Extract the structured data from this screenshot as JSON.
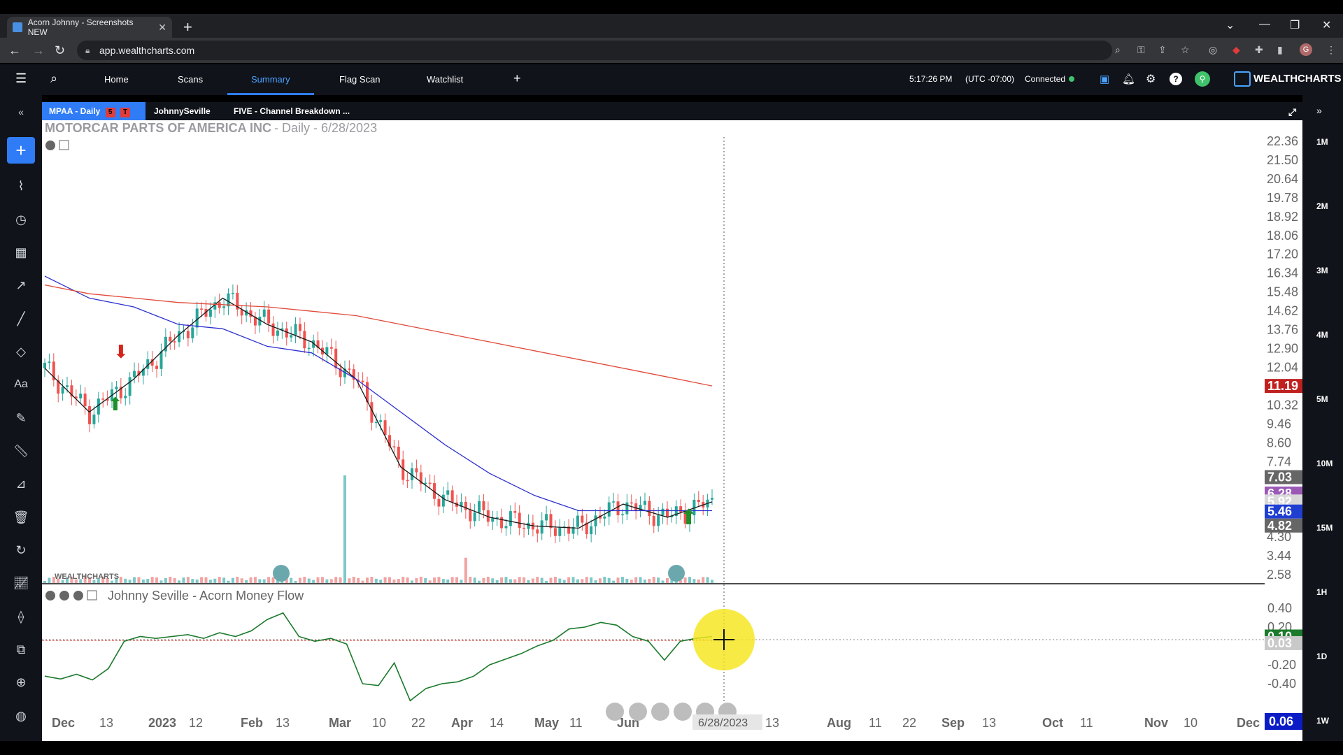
{
  "browser": {
    "tab_title": "Acorn Johnny - Screenshots NEW",
    "url": "app.wealthcharts.com"
  },
  "nav": {
    "home": "Home",
    "scans": "Scans",
    "summary": "Summary",
    "flag_scan": "Flag Scan",
    "watchlist": "Watchlist",
    "time": "5:17:26 PM",
    "timezone": "(UTC -07:00)",
    "status": "Connected",
    "brand": "WEALTHCHARTS"
  },
  "chart_tabs": {
    "tab1": "MPAA - Daily",
    "tab1_badge1": "5",
    "tab1_badge2": "T",
    "tab2": "JohnnySeville",
    "tab3": "FIVE - Channel Breakdown ..."
  },
  "chart": {
    "symbol_name": "MOTORCAR PARTS OF AMERICA INC",
    "subtitle": "- Daily - 6/28/2023",
    "indicator_name": "Johnny Seville - Acorn Money Flow",
    "watermark": "WEALTHCHARTS",
    "crosshair_date": "6/28/2023"
  },
  "right_timeframes": [
    "1M",
    "2M",
    "3M",
    "4M",
    "5M",
    "10M",
    "15M",
    "1H",
    "1D",
    "1W"
  ],
  "chart_data": [
    {
      "type": "line",
      "title": "MOTORCAR PARTS OF AMERICA INC",
      "price_axis_ticks": [
        "22.36",
        "21.50",
        "20.64",
        "19.78",
        "18.92",
        "18.06",
        "17.20",
        "16.34",
        "15.48",
        "14.62",
        "13.76",
        "12.90",
        "12.04",
        "10.32",
        "9.46",
        "8.60",
        "7.74",
        "4.30",
        "3.44",
        "2.58"
      ],
      "price_labels": [
        {
          "value": "11.19",
          "color": "#c0211f"
        },
        {
          "value": "7.03",
          "color": "#666666"
        },
        {
          "value": "6.28",
          "color": "#9b59b6"
        },
        {
          "value": "5.92",
          "color": "#d8d8d8"
        },
        {
          "value": "5.46",
          "color": "#1f3fd1"
        },
        {
          "value": "4.82",
          "color": "#666666"
        }
      ],
      "x_ticks": [
        "Dec",
        "13",
        "2023",
        "12",
        "Feb",
        "13",
        "Mar",
        "10",
        "22",
        "Apr",
        "14",
        "May",
        "11",
        "Jun",
        "12",
        "13",
        "Aug",
        "11",
        "22",
        "Sep",
        "13",
        "Oct",
        "11",
        "Nov",
        "10",
        "Dec"
      ],
      "series": [
        {
          "name": "",
          "color": "#1a1a1a",
          "values": [
            12.0,
            10.0,
            11.5,
            13.5,
            15.2,
            14.0,
            13.2,
            11.5,
            7.5,
            6.0,
            5.2,
            4.8,
            4.7,
            5.8,
            5.2,
            5.9
          ]
        },
        {
          "name": "",
          "color": "#2b2fcf",
          "values": [
            16.2,
            15.2,
            14.8,
            14.0,
            13.8,
            13.0,
            12.7,
            11.5,
            10.0,
            8.5,
            7.2,
            6.2,
            5.5,
            5.5,
            5.5,
            5.5
          ]
        },
        {
          "name": "",
          "color": "#e04a3a",
          "values": [
            15.8,
            15.4,
            15.2,
            15.0,
            14.9,
            14.8,
            14.6,
            14.4,
            14.0,
            13.6,
            13.2,
            12.8,
            12.4,
            12.0,
            11.6,
            11.19
          ]
        }
      ]
    },
    {
      "type": "line",
      "title": "Johnny Seville - Acorn Money Flow",
      "y_ticks": [
        "0.40",
        "0.20",
        "-0.20",
        "-0.40"
      ],
      "value_labels": [
        {
          "value": "0.10",
          "color": "#1c7a2c"
        },
        {
          "value": "0.03",
          "color": "#c9c9c9"
        }
      ],
      "series": [
        {
          "name": "",
          "color": "#1c7a2c",
          "values": [
            -0.32,
            -0.35,
            -0.3,
            -0.36,
            -0.24,
            0.05,
            0.1,
            0.08,
            0.1,
            0.12,
            0.08,
            0.14,
            0.1,
            0.16,
            0.28,
            0.35,
            0.1,
            0.05,
            0.08,
            0.02,
            -0.4,
            -0.42,
            -0.18,
            -0.58,
            -0.45,
            -0.4,
            -0.38,
            -0.32,
            -0.2,
            -0.14,
            -0.08,
            0.0,
            0.06,
            0.18,
            0.2,
            0.25,
            0.22,
            0.1,
            0.05,
            -0.15,
            0.05,
            0.08,
            0.1
          ]
        }
      ]
    }
  ],
  "last_value_badge": "0.06",
  "colors": {
    "accent": "#2f7cf6",
    "up": "#26a69a",
    "down": "#ef5350",
    "connected": "#3fc26b"
  }
}
